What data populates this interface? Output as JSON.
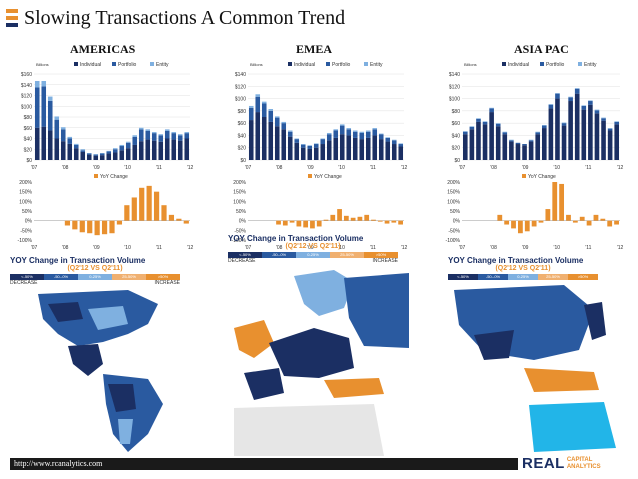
{
  "title": "Slowing Transactions A Common Trend",
  "regions": [
    {
      "name": "AMERICAS"
    },
    {
      "name": "EMEA"
    },
    {
      "name": "ASIA PAC"
    }
  ],
  "footer": {
    "url": "http://www.rcanalytics.com"
  },
  "logo": {
    "main_a": "REAL",
    "sub1": "CAPITAL",
    "sub2": "ANALYTICS"
  },
  "yoy_legend": {
    "title": "YOY Change in Transaction Volume",
    "subtitle": "(Q2'12 VS Q2'11)",
    "buckets": [
      "<-50%",
      "-50--0%",
      "0-25%",
      "25-50%",
      ">50%"
    ],
    "decrease": "DECREASE",
    "increase": "INCREASE"
  },
  "colors": {
    "dark": "#1b2f63",
    "mid": "#2a5aa0",
    "light": "#7fb0e0",
    "orange": "#e8902f"
  },
  "chart_data": [
    {
      "type": "bar",
      "region": "AMERICAS",
      "unit_label": "Billions",
      "legend": [
        "Individual",
        "Portfolio",
        "Entity"
      ],
      "ylim": [
        0,
        160
      ],
      "yticks": [
        "$0",
        "$20",
        "$40",
        "$60",
        "$80",
        "$100",
        "$120",
        "$140",
        "$160"
      ],
      "xticks": [
        "'07",
        "'08",
        "'09",
        "'10",
        "'11",
        "'12"
      ],
      "individual": [
        60,
        62,
        55,
        40,
        35,
        30,
        22,
        15,
        10,
        8,
        9,
        12,
        14,
        18,
        22,
        28,
        35,
        38,
        36,
        34,
        40,
        38,
        36,
        40
      ],
      "portfolio": [
        75,
        75,
        55,
        35,
        22,
        10,
        6,
        3,
        2,
        2,
        3,
        4,
        6,
        8,
        10,
        15,
        22,
        16,
        14,
        12,
        14,
        12,
        10,
        10
      ],
      "entity": [
        12,
        10,
        8,
        6,
        4,
        3,
        2,
        2,
        1,
        1,
        1,
        1,
        2,
        2,
        2,
        3,
        3,
        3,
        2,
        2,
        3,
        2,
        2,
        2
      ]
    },
    {
      "type": "bar",
      "region": "EMEA",
      "unit_label": "Billions",
      "legend": [
        "Individual",
        "Portfolio",
        "Entity"
      ],
      "ylim": [
        0,
        140
      ],
      "yticks": [
        "$0",
        "$20",
        "$40",
        "$60",
        "$80",
        "$100",
        "$120",
        "$140"
      ],
      "xticks": [
        "'07",
        "'08",
        "'09",
        "'10",
        "'11",
        "'12"
      ],
      "individual": [
        65,
        78,
        70,
        62,
        55,
        50,
        38,
        28,
        20,
        18,
        20,
        26,
        32,
        36,
        42,
        40,
        36,
        34,
        36,
        40,
        34,
        30,
        26,
        22
      ],
      "portfolio": [
        20,
        25,
        22,
        18,
        14,
        10,
        8,
        6,
        5,
        5,
        6,
        8,
        10,
        12,
        14,
        10,
        10,
        10,
        10,
        10,
        8,
        6,
        6,
        4
      ],
      "entity": [
        3,
        4,
        3,
        3,
        2,
        2,
        2,
        1,
        1,
        1,
        1,
        1,
        2,
        2,
        2,
        2,
        2,
        2,
        2,
        2,
        1,
        1,
        1,
        1
      ]
    },
    {
      "type": "bar",
      "region": "ASIA PAC",
      "unit_label": "Billions",
      "legend": [
        "Individual",
        "Portfolio",
        "Entity"
      ],
      "ylim": [
        0,
        140
      ],
      "yticks": [
        "$0",
        "$20",
        "$40",
        "$60",
        "$80",
        "$100",
        "$120",
        "$140"
      ],
      "xticks": [
        "'07",
        "'08",
        "'09",
        "'10",
        "'11",
        "'12"
      ],
      "individual": [
        42,
        50,
        62,
        58,
        78,
        55,
        42,
        30,
        26,
        24,
        30,
        42,
        52,
        84,
        100,
        56,
        96,
        108,
        82,
        90,
        76,
        64,
        48,
        58
      ],
      "portfolio": [
        4,
        4,
        5,
        4,
        6,
        4,
        3,
        2,
        2,
        2,
        2,
        3,
        4,
        6,
        8,
        4,
        6,
        8,
        6,
        6,
        5,
        4,
        3,
        4
      ],
      "entity": [
        1,
        1,
        1,
        1,
        1,
        1,
        1,
        1,
        0,
        0,
        1,
        1,
        1,
        1,
        1,
        1,
        1,
        1,
        1,
        1,
        1,
        1,
        1,
        1
      ]
    },
    {
      "type": "bar",
      "region": "AMERICAS",
      "legend": [
        "YoY Change"
      ],
      "ylim": [
        -100,
        200
      ],
      "yticks": [
        "-100%",
        "-50%",
        "0%",
        "50%",
        "100%",
        "150%",
        "200%"
      ],
      "xticks": [
        "'07",
        "'08",
        "'09",
        "'10",
        "'11",
        "'12"
      ],
      "values": [
        0,
        0,
        0,
        0,
        -25,
        -45,
        -60,
        -65,
        -75,
        -70,
        -65,
        -20,
        80,
        120,
        170,
        180,
        150,
        80,
        30,
        10,
        -15
      ]
    },
    {
      "type": "bar",
      "region": "EMEA",
      "legend": [
        "YoY Change"
      ],
      "ylim": [
        -100,
        200
      ],
      "yticks": [
        "-100%",
        "-50%",
        "0%",
        "50%",
        "100%",
        "150%",
        "200%"
      ],
      "xticks": [
        "'07",
        "'08",
        "'09",
        "'10",
        "'11",
        "'12"
      ],
      "values": [
        0,
        0,
        0,
        0,
        -20,
        -25,
        -10,
        -30,
        -35,
        -40,
        -30,
        5,
        30,
        60,
        25,
        15,
        20,
        30,
        5,
        -5,
        -15,
        -10,
        -20
      ]
    },
    {
      "type": "bar",
      "region": "ASIA PAC",
      "legend": [
        "YoY Change"
      ],
      "ylim": [
        -100,
        200
      ],
      "yticks": [
        "-100%",
        "-50%",
        "0%",
        "50%",
        "100%",
        "150%",
        "200%"
      ],
      "xticks": [
        "'07",
        "'08",
        "'09",
        "'10",
        "'11",
        "'12"
      ],
      "values": [
        0,
        0,
        0,
        0,
        0,
        30,
        -20,
        -40,
        -65,
        -55,
        -30,
        -10,
        60,
        200,
        190,
        30,
        -10,
        20,
        -25,
        30,
        10,
        -30,
        -20
      ]
    }
  ]
}
